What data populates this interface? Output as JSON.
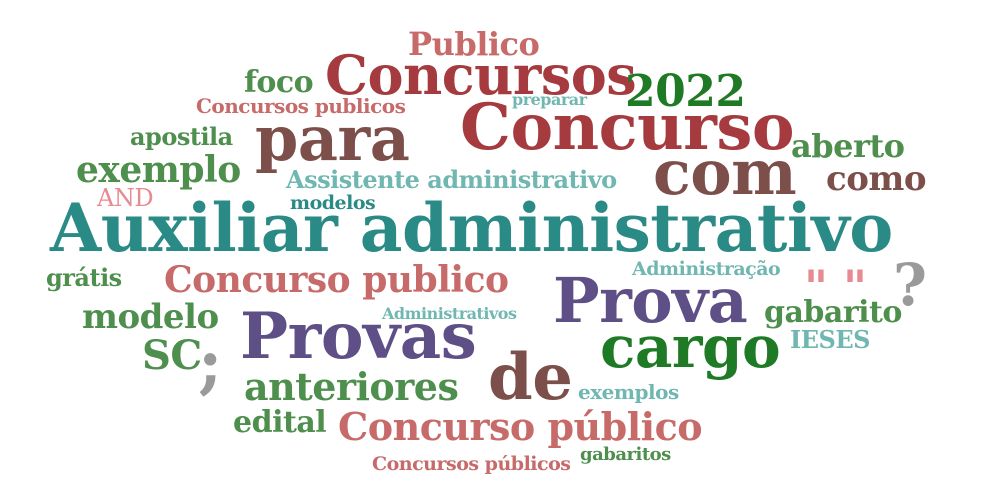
{
  "palette": {
    "teal": "#2a8a85",
    "teal_light": "#6fb7b0",
    "dark_red": "#a53a3f",
    "rose": "#c76a6a",
    "pink": "#e78a92",
    "brown": "#7c4f4a",
    "purple": "#5e4f86",
    "green": "#4e8f4e",
    "dark_green": "#1f7a25",
    "gray": "#9a9a9a"
  },
  "words": {
    "publico": "Publico",
    "concursos": "Concursos",
    "foco": "foco",
    "y2022": "2022",
    "concursos_publicos": "Concursos publicos",
    "preparar": "preparar",
    "apostila": "apostila",
    "para": "para",
    "concurso": "Concurso",
    "aberto": "aberto",
    "exemplo": "exemplo",
    "com": "com",
    "como": "como",
    "assistente_administrativo": "Assistente administrativo",
    "and": "AND",
    "modelos": "modelos",
    "auxiliar_administrativo": "Auxiliar administrativo",
    "gratis": "grátis",
    "concurso_publico": "Concurso publico",
    "administracao": "Administração",
    "quotes": "\" \"",
    "question": "?",
    "modelo": "modelo",
    "administrativos": "Administrativos",
    "prova": "Prova",
    "gabarito": "gabarito",
    "sc": "SC",
    "semicolon": ";",
    "provas": "Provas",
    "cargo": "cargo",
    "ieses": "IESES",
    "anteriores": "anteriores",
    "de": "de",
    "exemplos": "exemplos",
    "edital": "edital",
    "concurso_publico_acc": "Concurso público",
    "concursos_publicos_acc": "Concursos públicos",
    "gabaritos": "gabaritos"
  }
}
